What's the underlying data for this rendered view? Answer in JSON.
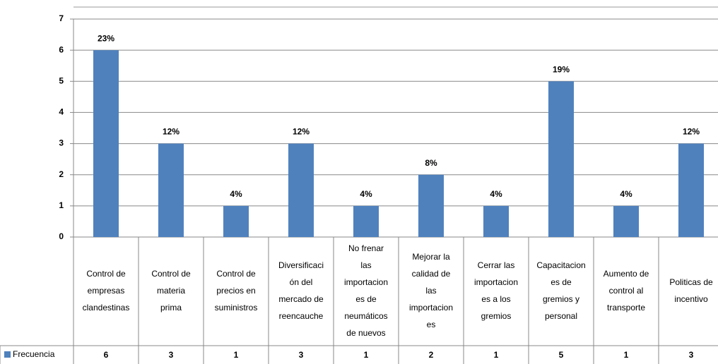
{
  "chart_data": {
    "type": "bar",
    "categories": [
      [
        "Control de",
        "empresas",
        "clandestinas"
      ],
      [
        "Control de",
        "materia",
        "prima"
      ],
      [
        "Control de",
        "precios en",
        "suministros"
      ],
      [
        "Diversificaci",
        "ón del",
        "mercado de",
        "reencauche"
      ],
      [
        "No frenar",
        "las",
        "importacion",
        "es de",
        "neumáticos",
        "de nuevos"
      ],
      [
        "Mejorar la",
        "calidad de",
        "las",
        "importacion",
        "es"
      ],
      [
        "Cerrar las",
        "importacion",
        "es a los",
        "gremios"
      ],
      [
        "Capacitacion",
        "es de",
        "gremios y",
        "personal"
      ],
      [
        "Aumento de",
        "control al",
        "transporte"
      ],
      [
        "Politicas de",
        "incentivo"
      ]
    ],
    "series": [
      {
        "name": "Frecuencia",
        "color": "#4f81bd",
        "values": [
          6,
          3,
          1,
          3,
          1,
          2,
          1,
          5,
          1,
          3
        ],
        "percent_labels": [
          "23%",
          "12%",
          "4%",
          "12%",
          "4%",
          "8%",
          "4%",
          "19%",
          "4%",
          "12%"
        ]
      }
    ],
    "ylim": [
      0,
      7
    ],
    "yticks": [
      0,
      1,
      2,
      3,
      4,
      5,
      6,
      7
    ],
    "grid": true
  }
}
